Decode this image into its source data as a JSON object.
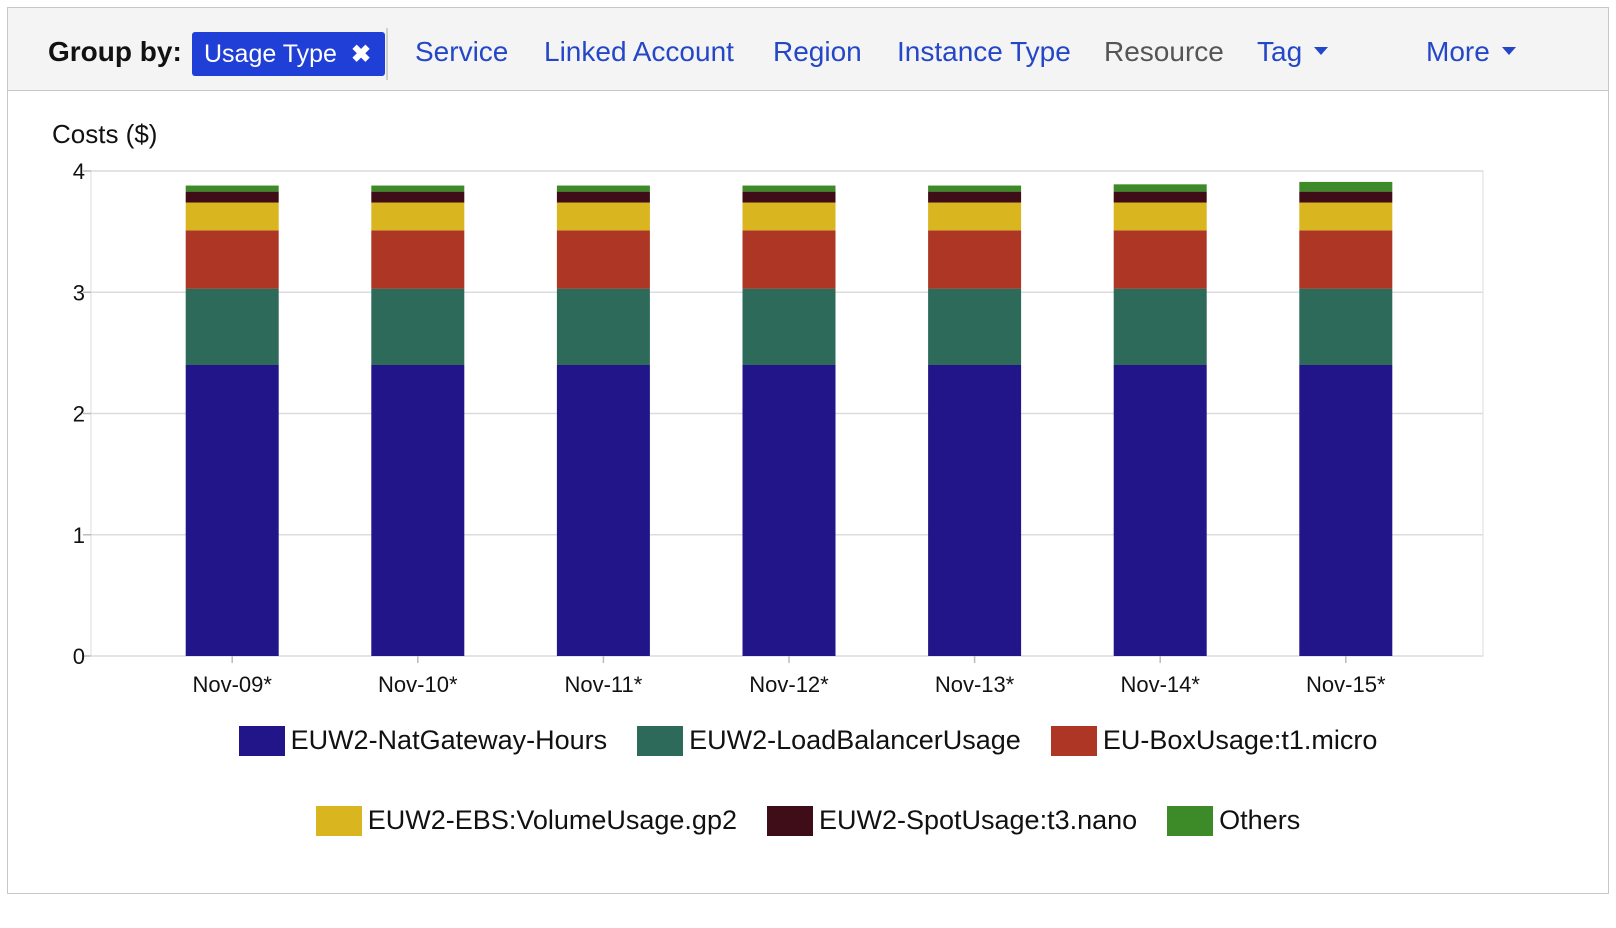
{
  "toolbar": {
    "group_by_label": "Group by:",
    "selected_chip": "Usage Type",
    "chip_close": "✖",
    "options": [
      "Service",
      "Linked Account",
      "Region",
      "Instance Type",
      "Resource",
      "Tag",
      "More"
    ]
  },
  "chart_data": {
    "type": "bar",
    "stacked": true,
    "ylabel": "Costs ($)",
    "xlabel": "",
    "ylim": [
      0,
      4
    ],
    "yticks": [
      0,
      1,
      2,
      3,
      4
    ],
    "grid": true,
    "legend_position": "bottom",
    "categories": [
      "Nov-09*",
      "Nov-10*",
      "Nov-11*",
      "Nov-12*",
      "Nov-13*",
      "Nov-14*",
      "Nov-15*"
    ],
    "series": [
      {
        "name": "EUW2-NatGateway-Hours",
        "color": "#22158a",
        "values": [
          2.4,
          2.4,
          2.4,
          2.4,
          2.4,
          2.4,
          2.4
        ]
      },
      {
        "name": "EUW2-LoadBalancerUsage",
        "color": "#2d6a5a",
        "values": [
          0.63,
          0.63,
          0.63,
          0.63,
          0.63,
          0.63,
          0.63
        ]
      },
      {
        "name": "EU-BoxUsage:t1.micro",
        "color": "#ad3624",
        "values": [
          0.48,
          0.48,
          0.48,
          0.48,
          0.48,
          0.48,
          0.48
        ]
      },
      {
        "name": "EUW2-EBS:VolumeUsage.gp2",
        "color": "#d9b520",
        "values": [
          0.23,
          0.23,
          0.23,
          0.23,
          0.23,
          0.23,
          0.23
        ]
      },
      {
        "name": "EUW2-SpotUsage:t3.nano",
        "color": "#3e0d18",
        "values": [
          0.09,
          0.09,
          0.09,
          0.09,
          0.09,
          0.09,
          0.09
        ]
      },
      {
        "name": "Others",
        "color": "#3d8b28",
        "values": [
          0.05,
          0.05,
          0.05,
          0.05,
          0.05,
          0.06,
          0.08
        ]
      }
    ]
  }
}
